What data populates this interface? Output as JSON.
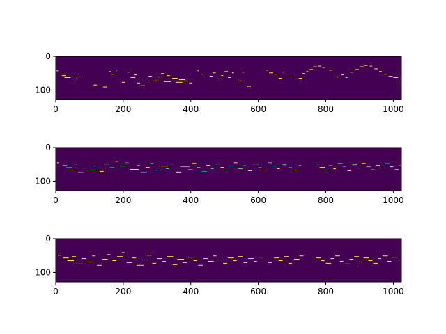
{
  "colors": {
    "background": "#440154",
    "note_yellow": "#fde725",
    "note_green": "#5ec962",
    "note_cyan": "#21918c",
    "axes": "#000000"
  },
  "chart_data": [
    {
      "type": "heatmap",
      "title": "",
      "xlabel": "",
      "ylabel": "",
      "xlim": [
        0,
        1024
      ],
      "ylim": [
        128,
        0
      ],
      "xticks": [
        0,
        200,
        400,
        600,
        800,
        1000
      ],
      "yticks": [
        0,
        100
      ],
      "x_tick_labels": [
        "0",
        "200",
        "400",
        "600",
        "800",
        "1000"
      ],
      "y_tick_labels": [
        "0",
        "100"
      ],
      "grid": false,
      "colormap": "viridis",
      "notes": [
        [
          2,
          42,
          5,
          1
        ],
        [
          18,
          56,
          12,
          1
        ],
        [
          26,
          62,
          18,
          1
        ],
        [
          40,
          66,
          22,
          1
        ],
        [
          60,
          60,
          8,
          1
        ],
        [
          112,
          84,
          10,
          1
        ],
        [
          140,
          90,
          12,
          1
        ],
        [
          158,
          44,
          6,
          1
        ],
        [
          165,
          52,
          8,
          1
        ],
        [
          178,
          40,
          4,
          1
        ],
        [
          196,
          76,
          10,
          1
        ],
        [
          212,
          46,
          6,
          1
        ],
        [
          222,
          62,
          14,
          1
        ],
        [
          232,
          54,
          8,
          1
        ],
        [
          240,
          78,
          10,
          1
        ],
        [
          252,
          86,
          12,
          1
        ],
        [
          260,
          66,
          14,
          1
        ],
        [
          275,
          58,
          10,
          1
        ],
        [
          288,
          72,
          18,
          1
        ],
        [
          300,
          60,
          12,
          1
        ],
        [
          312,
          50,
          10,
          1
        ],
        [
          320,
          74,
          22,
          1
        ],
        [
          330,
          56,
          8,
          1
        ],
        [
          345,
          64,
          16,
          1
        ],
        [
          355,
          76,
          20,
          1
        ],
        [
          365,
          68,
          18,
          1
        ],
        [
          378,
          72,
          14,
          1
        ],
        [
          395,
          78,
          10,
          1
        ],
        [
          420,
          42,
          4,
          1
        ],
        [
          432,
          52,
          6,
          1
        ],
        [
          456,
          58,
          10,
          1
        ],
        [
          466,
          48,
          8,
          1
        ],
        [
          480,
          66,
          12,
          1
        ],
        [
          490,
          56,
          6,
          1
        ],
        [
          500,
          44,
          10,
          1
        ],
        [
          510,
          62,
          8,
          1
        ],
        [
          522,
          48,
          6,
          1
        ],
        [
          540,
          72,
          12,
          1
        ],
        [
          552,
          46,
          6,
          1
        ],
        [
          566,
          88,
          12,
          1
        ],
        [
          622,
          40,
          6,
          1
        ],
        [
          632,
          48,
          12,
          1
        ],
        [
          648,
          52,
          8,
          1
        ],
        [
          660,
          64,
          10,
          1
        ],
        [
          672,
          46,
          6,
          1
        ],
        [
          694,
          60,
          10,
          1
        ],
        [
          720,
          64,
          10,
          1
        ],
        [
          730,
          50,
          8,
          1
        ],
        [
          742,
          44,
          6,
          1
        ],
        [
          752,
          38,
          10,
          1
        ],
        [
          762,
          30,
          12,
          1
        ],
        [
          776,
          28,
          10,
          1
        ],
        [
          790,
          32,
          8,
          1
        ],
        [
          810,
          40,
          8,
          1
        ],
        [
          830,
          60,
          10,
          1
        ],
        [
          846,
          54,
          8,
          1
        ],
        [
          858,
          62,
          6,
          1
        ],
        [
          872,
          46,
          10,
          1
        ],
        [
          888,
          38,
          10,
          1
        ],
        [
          900,
          30,
          12,
          1
        ],
        [
          914,
          26,
          10,
          1
        ],
        [
          930,
          28,
          8,
          1
        ],
        [
          944,
          36,
          10,
          1
        ],
        [
          958,
          44,
          8,
          1
        ],
        [
          972,
          52,
          10,
          1
        ],
        [
          986,
          58,
          12,
          1
        ],
        [
          1000,
          62,
          14,
          1
        ],
        [
          1014,
          66,
          8,
          1
        ]
      ]
    },
    {
      "type": "heatmap",
      "title": "",
      "xlabel": "",
      "ylabel": "",
      "xlim": [
        0,
        1024
      ],
      "ylim": [
        128,
        0
      ],
      "xticks": [
        0,
        200,
        400,
        600,
        800,
        1000
      ],
      "yticks": [
        0,
        100
      ],
      "x_tick_labels": [
        "0",
        "200",
        "400",
        "600",
        "800",
        "1000"
      ],
      "y_tick_labels": [
        "0",
        "100"
      ],
      "grid": false,
      "colormap": "viridis",
      "notes": [
        [
          4,
          44,
          6,
          1
        ],
        [
          20,
          52,
          14,
          1
        ],
        [
          30,
          58,
          20,
          2
        ],
        [
          40,
          66,
          18,
          1
        ],
        [
          54,
          48,
          10,
          2
        ],
        [
          66,
          72,
          16,
          1
        ],
        [
          80,
          60,
          10,
          1
        ],
        [
          96,
          66,
          24,
          1
        ],
        [
          112,
          54,
          8,
          1
        ],
        [
          130,
          70,
          12,
          1
        ],
        [
          142,
          48,
          18,
          2
        ],
        [
          160,
          58,
          14,
          1
        ],
        [
          176,
          40,
          8,
          1
        ],
        [
          190,
          54,
          16,
          1
        ],
        [
          205,
          44,
          12,
          1
        ],
        [
          220,
          64,
          26,
          2
        ],
        [
          240,
          52,
          10,
          1
        ],
        [
          252,
          72,
          18,
          1
        ],
        [
          266,
          58,
          12,
          2
        ],
        [
          280,
          46,
          10,
          1
        ],
        [
          296,
          66,
          14,
          1
        ],
        [
          312,
          54,
          20,
          1
        ],
        [
          326,
          62,
          10,
          2
        ],
        [
          340,
          48,
          8,
          1
        ],
        [
          356,
          72,
          16,
          1
        ],
        [
          370,
          56,
          26,
          2
        ],
        [
          392,
          64,
          14,
          1
        ],
        [
          404,
          46,
          12,
          1
        ],
        [
          418,
          58,
          10,
          2
        ],
        [
          432,
          70,
          16,
          1
        ],
        [
          446,
          52,
          12,
          1
        ],
        [
          460,
          62,
          8,
          1
        ],
        [
          474,
          48,
          14,
          1
        ],
        [
          488,
          58,
          10,
          2
        ],
        [
          500,
          66,
          12,
          1
        ],
        [
          514,
          54,
          16,
          1
        ],
        [
          528,
          44,
          10,
          1
        ],
        [
          540,
          62,
          14,
          2
        ],
        [
          556,
          52,
          8,
          1
        ],
        [
          570,
          68,
          12,
          1
        ],
        [
          584,
          48,
          18,
          1
        ],
        [
          600,
          58,
          10,
          1
        ],
        [
          614,
          66,
          8,
          2
        ],
        [
          628,
          44,
          12,
          1
        ],
        [
          640,
          54,
          14,
          1
        ],
        [
          656,
          62,
          8,
          1
        ],
        [
          672,
          50,
          12,
          1
        ],
        [
          690,
          58,
          10,
          1
        ],
        [
          704,
          66,
          14,
          1
        ],
        [
          720,
          52,
          8,
          1
        ],
        [
          770,
          48,
          12,
          1
        ],
        [
          782,
          58,
          16,
          2
        ],
        [
          796,
          66,
          10,
          1
        ],
        [
          808,
          52,
          12,
          1
        ],
        [
          822,
          62,
          8,
          1
        ],
        [
          836,
          46,
          14,
          1
        ],
        [
          850,
          56,
          10,
          2
        ],
        [
          864,
          68,
          12,
          1
        ],
        [
          878,
          50,
          16,
          1
        ],
        [
          892,
          60,
          10,
          1
        ],
        [
          906,
          46,
          12,
          1
        ],
        [
          920,
          56,
          14,
          2
        ],
        [
          934,
          64,
          10,
          1
        ],
        [
          948,
          52,
          12,
          1
        ],
        [
          962,
          60,
          8,
          1
        ],
        [
          976,
          46,
          14,
          1
        ],
        [
          990,
          56,
          10,
          1
        ],
        [
          1004,
          64,
          12,
          2
        ],
        [
          1016,
          52,
          6,
          1
        ]
      ]
    },
    {
      "type": "heatmap",
      "title": "",
      "xlabel": "",
      "ylabel": "",
      "xlim": [
        0,
        1024
      ],
      "ylim": [
        128,
        0
      ],
      "xticks": [
        0,
        200,
        400,
        600,
        800,
        1000
      ],
      "yticks": [
        0,
        100
      ],
      "x_tick_labels": [
        "0",
        "200",
        "400",
        "600",
        "800",
        "1000"
      ],
      "y_tick_labels": [
        "0",
        "100"
      ],
      "grid": false,
      "colormap": "viridis",
      "notes": [
        [
          6,
          48,
          10,
          1
        ],
        [
          22,
          56,
          16,
          1
        ],
        [
          34,
          64,
          20,
          2
        ],
        [
          48,
          52,
          12,
          1
        ],
        [
          60,
          74,
          22,
          1
        ],
        [
          76,
          58,
          14,
          2
        ],
        [
          92,
          68,
          18,
          1
        ],
        [
          108,
          50,
          10,
          1
        ],
        [
          122,
          78,
          14,
          1
        ],
        [
          138,
          60,
          16,
          2
        ],
        [
          152,
          46,
          10,
          1
        ],
        [
          168,
          64,
          12,
          1
        ],
        [
          182,
          52,
          18,
          1
        ],
        [
          196,
          40,
          8,
          2
        ],
        [
          210,
          70,
          16,
          1
        ],
        [
          226,
          56,
          12,
          1
        ],
        [
          240,
          78,
          20,
          2
        ],
        [
          256,
          62,
          10,
          1
        ],
        [
          270,
          48,
          14,
          1
        ],
        [
          286,
          72,
          12,
          1
        ],
        [
          300,
          58,
          16,
          2
        ],
        [
          316,
          66,
          10,
          1
        ],
        [
          330,
          52,
          18,
          1
        ],
        [
          346,
          76,
          14,
          1
        ],
        [
          360,
          60,
          20,
          2
        ],
        [
          376,
          70,
          12,
          1
        ],
        [
          392,
          54,
          16,
          1
        ],
        [
          408,
          64,
          10,
          2
        ],
        [
          422,
          78,
          14,
          1
        ],
        [
          438,
          58,
          12,
          1
        ],
        [
          452,
          66,
          16,
          1
        ],
        [
          466,
          50,
          10,
          2
        ],
        [
          480,
          62,
          14,
          1
        ],
        [
          496,
          72,
          12,
          1
        ],
        [
          510,
          56,
          18,
          2
        ],
        [
          526,
          64,
          10,
          1
        ],
        [
          540,
          52,
          14,
          1
        ],
        [
          556,
          70,
          12,
          1
        ],
        [
          570,
          58,
          16,
          2
        ],
        [
          586,
          66,
          10,
          1
        ],
        [
          600,
          54,
          14,
          1
        ],
        [
          616,
          62,
          12,
          1
        ],
        [
          630,
          70,
          10,
          2
        ],
        [
          646,
          56,
          16,
          1
        ],
        [
          660,
          64,
          12,
          1
        ],
        [
          676,
          52,
          14,
          1
        ],
        [
          690,
          72,
          10,
          2
        ],
        [
          706,
          60,
          16,
          1
        ],
        [
          722,
          50,
          12,
          1
        ],
        [
          772,
          56,
          14,
          2
        ],
        [
          786,
          64,
          10,
          1
        ],
        [
          800,
          72,
          16,
          1
        ],
        [
          814,
          58,
          12,
          1
        ],
        [
          828,
          50,
          14,
          2
        ],
        [
          842,
          66,
          10,
          1
        ],
        [
          856,
          74,
          16,
          1
        ],
        [
          870,
          60,
          12,
          1
        ],
        [
          884,
          52,
          14,
          2
        ],
        [
          898,
          68,
          10,
          1
        ],
        [
          912,
          56,
          16,
          1
        ],
        [
          926,
          64,
          12,
          1
        ],
        [
          940,
          72,
          14,
          2
        ],
        [
          954,
          58,
          10,
          1
        ],
        [
          968,
          50,
          16,
          1
        ],
        [
          982,
          66,
          12,
          1
        ],
        [
          996,
          54,
          14,
          2
        ],
        [
          1010,
          62,
          10,
          1
        ]
      ]
    }
  ]
}
